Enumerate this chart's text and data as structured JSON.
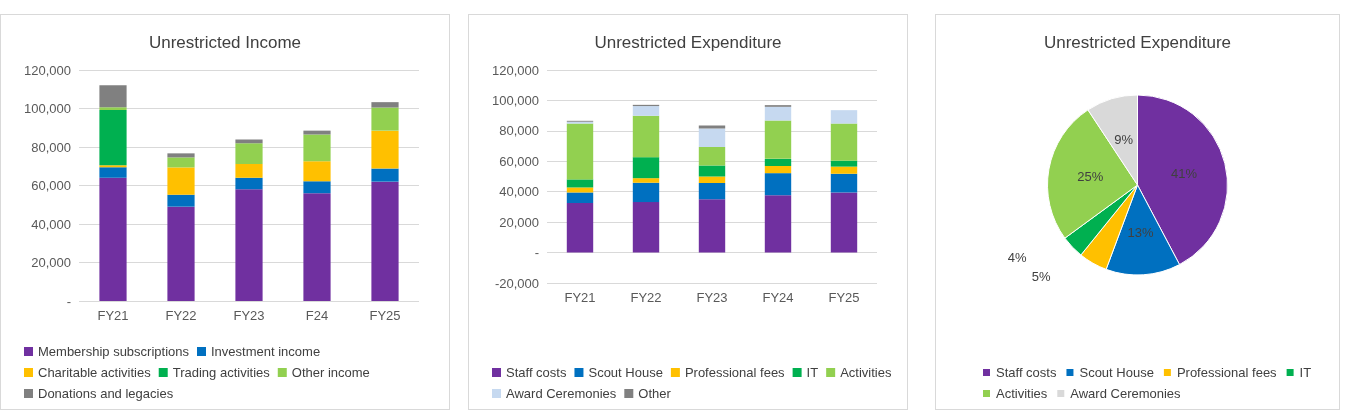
{
  "chart_data": [
    {
      "type": "bar",
      "title": "Unrestricted Income",
      "categories": [
        "FY21",
        "FY22",
        "FY23",
        "F24",
        "FY25"
      ],
      "stacked": true,
      "grid": "y",
      "legend": "bottom",
      "ylim": [
        0,
        120000
      ],
      "yticks": [
        {
          "value": 0,
          "label": "-"
        },
        {
          "value": 20000,
          "label": "20,000"
        },
        {
          "value": 40000,
          "label": "40,000"
        },
        {
          "value": 60000,
          "label": "60,000"
        },
        {
          "value": 80000,
          "label": "80,000"
        },
        {
          "value": 100000,
          "label": "100,000"
        },
        {
          "value": 120000,
          "label": "120,000"
        }
      ],
      "series": [
        {
          "name": "Membership subscriptions",
          "color": "#7030a0",
          "values": [
            64000,
            49000,
            58000,
            56000,
            62000
          ]
        },
        {
          "name": "Investment income",
          "color": "#0070c0",
          "values": [
            5500,
            6200,
            6000,
            6200,
            6800
          ]
        },
        {
          "name": "Charitable activities",
          "color": "#ffc000",
          "values": [
            1000,
            14200,
            7200,
            10400,
            19700
          ]
        },
        {
          "name": "Trading activities",
          "color": "#00b050",
          "values": [
            28700,
            0,
            0,
            0,
            0
          ]
        },
        {
          "name": "Other income",
          "color": "#92d050",
          "values": [
            1400,
            5200,
            10700,
            13900,
            12000
          ]
        },
        {
          "name": "Donations and legacies",
          "color": "#808080",
          "values": [
            11500,
            2100,
            2000,
            2000,
            2800
          ]
        }
      ]
    },
    {
      "type": "bar",
      "title": "Unrestricted Expenditure",
      "categories": [
        "FY21",
        "FY22",
        "FY23",
        "FY24",
        "FY25"
      ],
      "stacked": true,
      "grid": "y",
      "legend": "bottom",
      "ylim": [
        -20000,
        120000
      ],
      "yticks": [
        {
          "value": -20000,
          "label": "-20,000"
        },
        {
          "value": 0,
          "label": "-"
        },
        {
          "value": 20000,
          "label": "20,000"
        },
        {
          "value": 40000,
          "label": "40,000"
        },
        {
          "value": 60000,
          "label": "60,000"
        },
        {
          "value": 80000,
          "label": "80,000"
        },
        {
          "value": 100000,
          "label": "100,000"
        },
        {
          "value": 120000,
          "label": "120,000"
        }
      ],
      "series": [
        {
          "name": "Staff costs",
          "color": "#7030a0",
          "values": [
            32600,
            33200,
            35000,
            37700,
            39500
          ]
        },
        {
          "name": "Scout House",
          "color": "#0070c0",
          "values": [
            6900,
            12700,
            10700,
            14500,
            12300
          ]
        },
        {
          "name": "Professional fees",
          "color": "#ffc000",
          "values": [
            3300,
            3000,
            4300,
            4700,
            4700
          ]
        },
        {
          "name": "IT",
          "color": "#00b050",
          "values": [
            5300,
            13800,
            7300,
            4700,
            3900
          ]
        },
        {
          "name": "Activities",
          "color": "#92d050",
          "values": [
            36700,
            27200,
            12100,
            25200,
            24400
          ]
        },
        {
          "name": "Award Ceremonies",
          "color": "#c6d9f0",
          "values": [
            1200,
            6400,
            12100,
            9000,
            8800
          ]
        },
        {
          "name": "Other",
          "color": "#808080",
          "values": [
            600,
            800,
            2100,
            1100,
            0
          ]
        }
      ]
    },
    {
      "type": "pie",
      "title": "Unrestricted Expenditure",
      "legend": "bottom",
      "categories": [
        "Staff costs",
        "Scout House",
        "Professional fees",
        "IT",
        "Activities",
        "Award Ceremonies"
      ],
      "values": [
        41,
        13,
        5,
        4,
        25,
        9
      ],
      "value_labels": [
        "41%",
        "13%",
        "5%",
        "4%",
        "25%",
        "9%"
      ],
      "colors": [
        "#7030a0",
        "#0070c0",
        "#ffc000",
        "#00b050",
        "#92d050",
        "#d9d9d9"
      ]
    }
  ]
}
